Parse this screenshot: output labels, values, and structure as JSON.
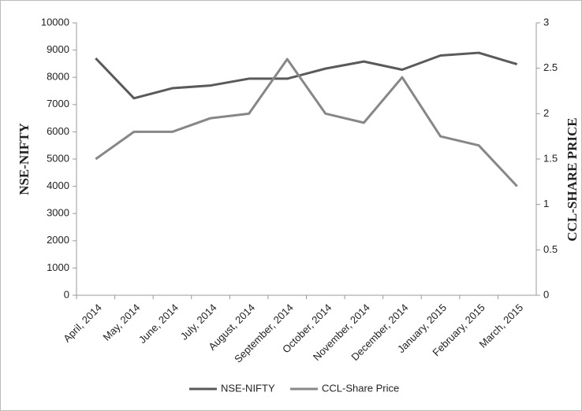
{
  "chart_data": {
    "type": "line",
    "categories": [
      "April, 2014",
      "May, 2014",
      "June, 2014",
      "July, 2014",
      "August, 2014",
      "September, 2014",
      "October, 2014",
      "November, 2014",
      "December, 2014",
      "January, 2015",
      "February, 2015",
      "March, 2015"
    ],
    "series": [
      {
        "name": "NSE-NIFTY",
        "color": "#5a5a5a",
        "values": [
          8700,
          7230,
          7600,
          7700,
          7950,
          7950,
          8320,
          8580,
          8280,
          8800,
          8900,
          8480
        ]
      },
      {
        "name": "CCL-Share Price",
        "color": "#878787",
        "axis": "y2",
        "values": [
          1.5,
          1.8,
          1.8,
          1.95,
          2.0,
          2.6,
          2.0,
          1.9,
          2.4,
          1.75,
          1.65,
          1.2
        ]
      }
    ],
    "ylabel": "NSE-NIFTY",
    "y2label": "CCL-SHARE PRICE",
    "ylim": [
      0,
      10000
    ],
    "yticks": [
      0,
      1000,
      2000,
      3000,
      4000,
      5000,
      6000,
      7000,
      8000,
      9000,
      10000
    ],
    "y2lim": [
      0,
      3
    ],
    "y2ticks": [
      0,
      0.5,
      1,
      1.5,
      2,
      2.5,
      3
    ],
    "grid": false,
    "legend": "bottom"
  }
}
